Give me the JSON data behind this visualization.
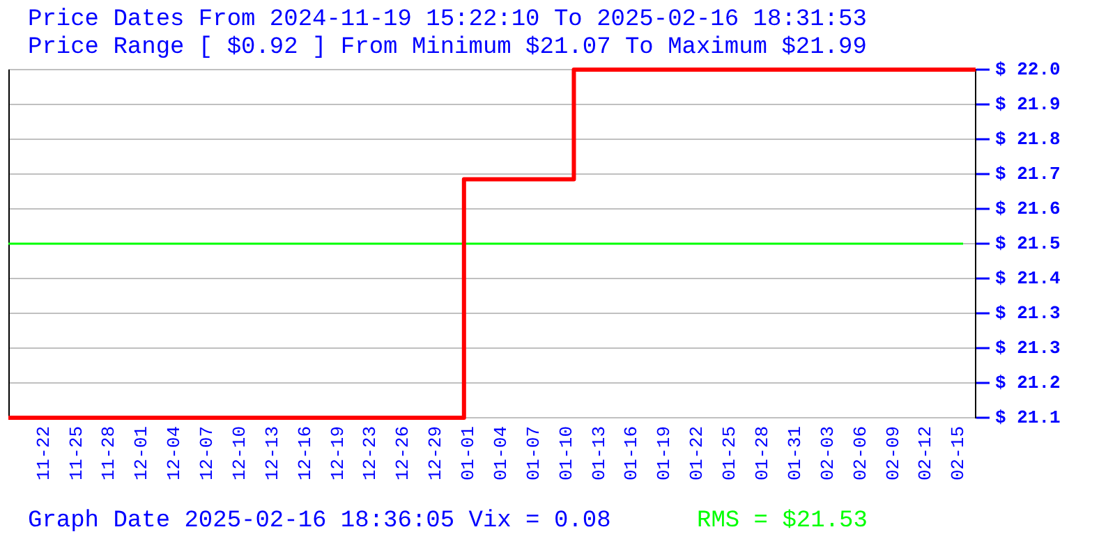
{
  "chart_data": {
    "type": "step",
    "title": "Price Dates From 2024-11-19 15:22:10 To 2025-02-16 18:31:53",
    "subtitle": "Price Range [ $0.92 ] From Minimum $21.07 To Maximum $21.99",
    "annotations": [
      "Graph Date 2025-02-16 18:36:05 Vix = 0.08"
    ],
    "x": [
      "2024-11-19T15:22",
      "2024-12-31T15:00",
      "2025-01-10T18:00",
      "2025-02-16T18:31"
    ],
    "series": [
      {
        "color": "#ff0000",
        "values": [
          21.07,
          21.7,
          21.99,
          21.99
        ]
      }
    ],
    "xlim": [
      "2024-11-19T15:22",
      "2025-02-16T18:31"
    ],
    "xticks": [
      {
        "value": "2024-11-22T21:36",
        "label": "11-22"
      },
      {
        "value": "2024-11-25T21:51",
        "label": "11-25"
      },
      {
        "value": "2024-11-28T22:06",
        "label": "11-28"
      },
      {
        "value": "2024-12-01T22:21",
        "label": "12-01"
      },
      {
        "value": "2024-12-04T22:36",
        "label": "12-04"
      },
      {
        "value": "2024-12-07T22:51",
        "label": "12-07"
      },
      {
        "value": "2024-12-10T23:06",
        "label": "12-10"
      },
      {
        "value": "2024-12-13T23:21",
        "label": "12-13"
      },
      {
        "value": "2024-12-16T23:36",
        "label": "12-16"
      },
      {
        "value": "2024-12-19T23:51",
        "label": "12-19"
      },
      {
        "value": "2024-12-23T00:06",
        "label": "12-23"
      },
      {
        "value": "2024-12-26T00:21",
        "label": "12-26"
      },
      {
        "value": "2024-12-29T00:36",
        "label": "12-29"
      },
      {
        "value": "2025-01-01T00:51",
        "label": "01-01"
      },
      {
        "value": "2025-01-04T01:06",
        "label": "01-04"
      },
      {
        "value": "2025-01-07T01:21",
        "label": "01-07"
      },
      {
        "value": "2025-01-10T01:36",
        "label": "01-10"
      },
      {
        "value": "2025-01-13T01:51",
        "label": "01-13"
      },
      {
        "value": "2025-01-16T02:06",
        "label": "01-16"
      },
      {
        "value": "2025-01-19T02:21",
        "label": "01-19"
      },
      {
        "value": "2025-01-22T02:36",
        "label": "01-22"
      },
      {
        "value": "2025-01-25T02:51",
        "label": "01-25"
      },
      {
        "value": "2025-01-28T03:06",
        "label": "01-28"
      },
      {
        "value": "2025-01-31T03:21",
        "label": "01-31"
      },
      {
        "value": "2025-02-03T03:36",
        "label": "02-03"
      },
      {
        "value": "2025-02-06T03:51",
        "label": "02-06"
      },
      {
        "value": "2025-02-09T04:06",
        "label": "02-09"
      },
      {
        "value": "2025-02-12T04:21",
        "label": "02-12"
      },
      {
        "value": "2025-02-15T04:36",
        "label": "02-15"
      }
    ],
    "ylim": [
      21.07,
      21.99
    ],
    "yticks": [
      {
        "value": 21.07,
        "label": "$ 21.1"
      },
      {
        "value": 21.162,
        "label": "$ 21.2"
      },
      {
        "value": 21.254,
        "label": "$ 21.3"
      },
      {
        "value": 21.346,
        "label": "$ 21.3"
      },
      {
        "value": 21.438,
        "label": "$ 21.4"
      },
      {
        "value": 21.53,
        "label": "$ 21.5"
      },
      {
        "value": 21.622,
        "label": "$ 21.6"
      },
      {
        "value": 21.714,
        "label": "$ 21.7"
      },
      {
        "value": 21.806,
        "label": "$ 21.8"
      },
      {
        "value": 21.898,
        "label": "$ 21.9"
      },
      {
        "value": 21.99,
        "label": "$ 22.0"
      }
    ],
    "ref_lines": [
      {
        "axis": "y",
        "value": 21.53,
        "label": "RMS = $21.53",
        "color": "#00ff00"
      }
    ],
    "grid": "y",
    "legend": false
  }
}
